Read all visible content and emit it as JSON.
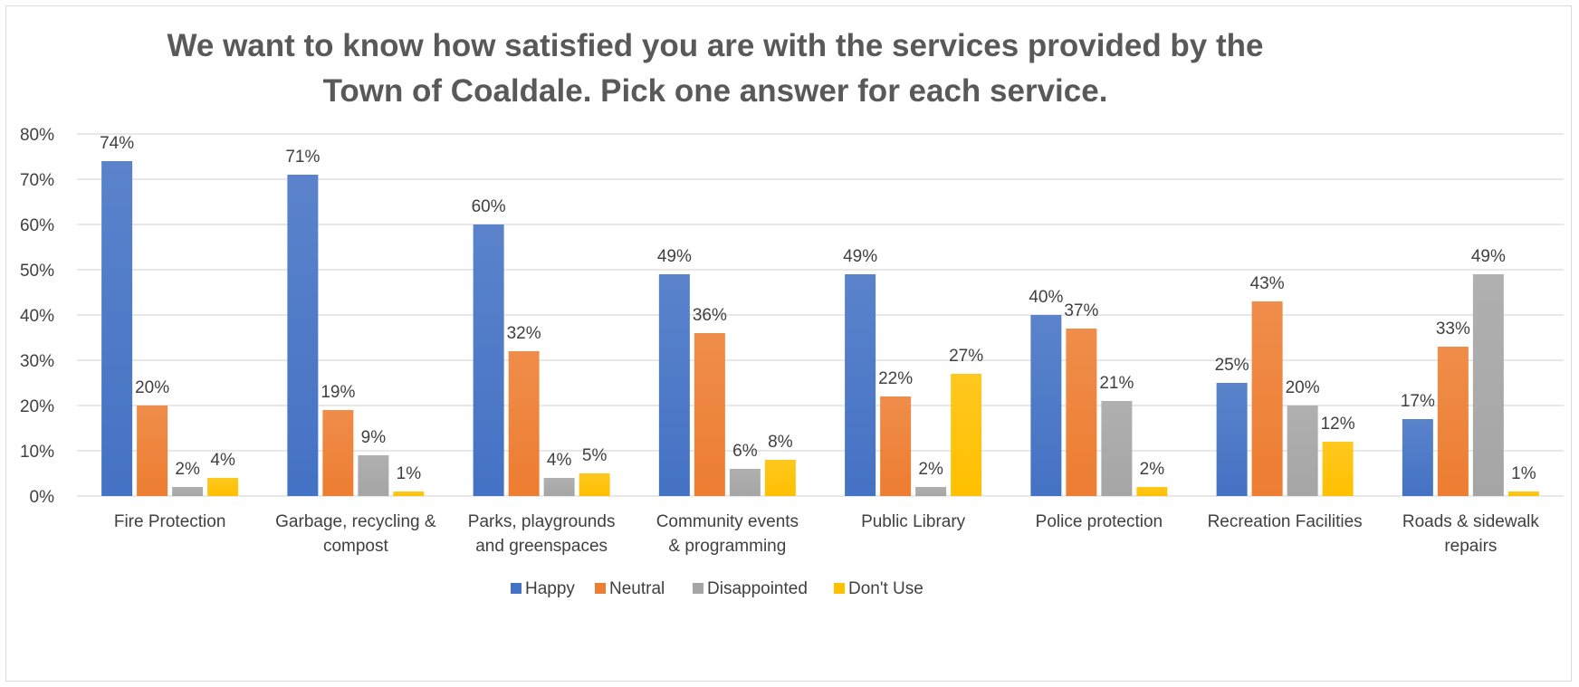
{
  "chart_data": {
    "type": "bar",
    "title_lines": [
      "We want to know how satisfied you are with the services provided by the",
      "Town of Coaldale. Pick one answer for each service."
    ],
    "categories": [
      [
        "Fire Protection"
      ],
      [
        "Garbage, recycling &",
        "compost"
      ],
      [
        "Parks, playgrounds",
        "and greenspaces"
      ],
      [
        "Community events",
        "& programming"
      ],
      [
        "Public Library"
      ],
      [
        "Police protection"
      ],
      [
        "Recreation Facilities"
      ],
      [
        "Roads & sidewalk",
        "repairs"
      ]
    ],
    "series": [
      {
        "name": "Happy",
        "color": "#4472C4",
        "values": [
          74,
          71,
          60,
          49,
          49,
          40,
          25,
          17
        ]
      },
      {
        "name": "Neutral",
        "color": "#ED7D31",
        "values": [
          20,
          19,
          32,
          36,
          22,
          37,
          43,
          33
        ]
      },
      {
        "name": "Disappointed",
        "color": "#A5A5A5",
        "values": [
          2,
          9,
          4,
          6,
          2,
          21,
          20,
          49
        ]
      },
      {
        "name": "Don't Use",
        "color": "#FFC000",
        "values": [
          4,
          1,
          5,
          8,
          27,
          2,
          12,
          1
        ]
      }
    ],
    "ylim": [
      0,
      80
    ],
    "yticks": [
      "0%",
      "10%",
      "20%",
      "30%",
      "40%",
      "50%",
      "60%",
      "70%",
      "80%"
    ],
    "value_suffix": "%",
    "grid": true,
    "legend_position": "bottom"
  }
}
